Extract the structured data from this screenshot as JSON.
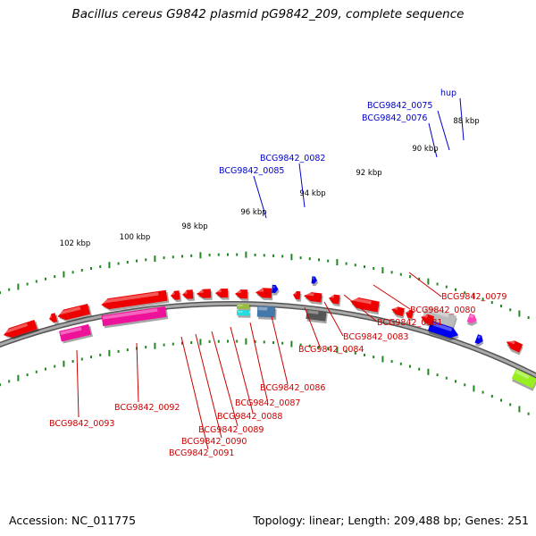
{
  "title": "Bacillus cereus G9842 plasmid pG9842_209, complete sequence",
  "footer": {
    "accession_label": "Accession:",
    "accession": "NC_011775",
    "stats": "Topology: linear; Length: 209,488 bp; Genes: 251"
  },
  "colors": {
    "backbone": "#999999",
    "scale_tick": "#228822",
    "scale_label": "#000000",
    "gene_label_top": "#0000cc",
    "gene_label_bottom": "#cc0000",
    "red_gene": "#ee0000",
    "magenta_gene": "#ee1199",
    "pink_gene": "#ff44bb",
    "gray_gene": "#bbbbbb",
    "dark_gray_gene": "#555555",
    "blue_gene": "#0000ee",
    "steel_gene": "#4477aa",
    "lime_gene": "#99ee22",
    "cyan_gene": "#22dddd",
    "olive_gene": "#99bb44"
  },
  "scale_labels": [
    "88 kbp",
    "90 kbp",
    "92 kbp",
    "94 kbp",
    "96 kbp",
    "98 kbp",
    "100 kbp",
    "102 kbp"
  ],
  "gene_labels_top": [
    "hup",
    "BCG9842_0075",
    "BCG9842_0076",
    "BCG9842_0082",
    "BCG9842_0085"
  ],
  "gene_labels_bottom": [
    "BCG9842_0079",
    "BCG9842_0080",
    "BCG9842_0081",
    "BCG9842_0083",
    "BCG9842_0084",
    "BCG9842_0086",
    "BCG9842_0087",
    "BCG9842_0088",
    "BCG9842_0089",
    "BCG9842_0090",
    "BCG9842_0091",
    "BCG9842_0092",
    "BCG9842_0093"
  ]
}
